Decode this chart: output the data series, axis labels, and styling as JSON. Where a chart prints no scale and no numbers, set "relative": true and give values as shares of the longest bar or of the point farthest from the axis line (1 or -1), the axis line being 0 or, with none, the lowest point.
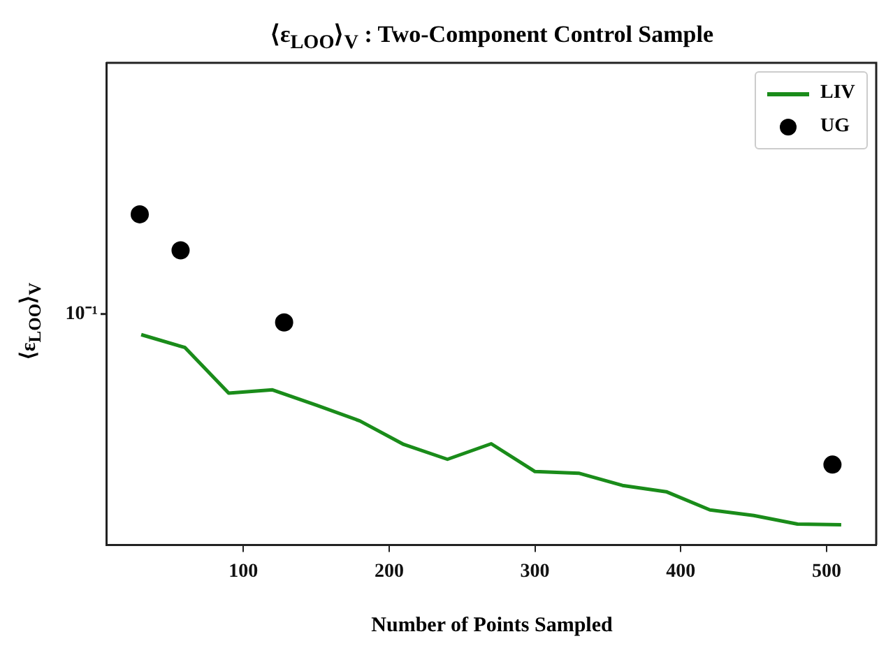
{
  "chart_data": {
    "type": "line",
    "title": "⟨ε$_{LOO}$⟩$_{V}$ : Two-Component Control Sample",
    "xlabel": "Number of Points Sampled",
    "ylabel": "⟨ε$_{LOO}$⟩$_{V}$",
    "relative": true,
    "grid": false,
    "legend": "top right",
    "xlim": [
      6,
      534
    ],
    "xticks": [
      100,
      200,
      300,
      400,
      500
    ],
    "annotations": [
      "10⁻¹"
    ],
    "series": [
      {
        "name": "LIV",
        "color": "#1a8c1a",
        "marker": "none",
        "line_style": "solid",
        "x": [
          30,
          60,
          90,
          120,
          150,
          180,
          210,
          240,
          270,
          300,
          330,
          360,
          390,
          420,
          450,
          480,
          510
        ],
        "values": [
          0.636,
          0.597,
          0.459,
          0.469,
          0.423,
          0.375,
          0.304,
          0.259,
          0.306,
          0.222,
          0.217,
          0.18,
          0.161,
          0.106,
          0.089,
          0.063,
          0.061
        ]
      },
      {
        "name": "UG",
        "type": "scatter",
        "color": "#000000",
        "marker": "circle",
        "x": [
          29,
          57,
          128,
          504
        ],
        "values": [
          1,
          0.891,
          0.673,
          0.243
        ]
      }
    ]
  }
}
